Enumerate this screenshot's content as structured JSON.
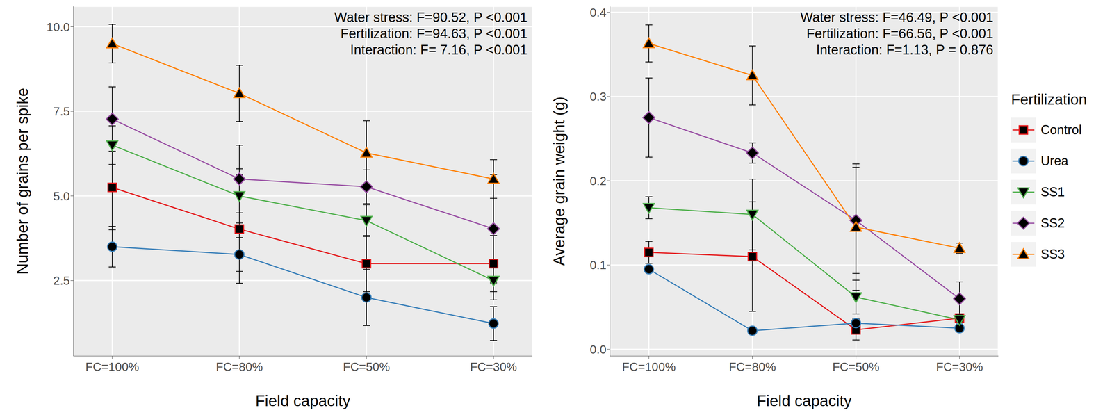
{
  "chart_data": [
    {
      "type": "line",
      "x_label": "Field capacity",
      "y_label": "Number of grains per spike",
      "annotations": [
        "Water stress: F=90.52, P <0.001",
        "Fertilization: F=94.63, P <0.001",
        "Interaction: F= 7.16, P <0.001"
      ],
      "categories": [
        "FC=100%",
        "FC=80%",
        "FC=50%",
        "FC=30%"
      ],
      "ylim": [
        0.27,
        10.6
      ],
      "yticks": [
        2.5,
        {
          "value": 5,
          "label": "5.0"
        },
        7.5,
        {
          "value": 10,
          "label": "10.0"
        }
      ],
      "grid": true,
      "series": [
        {
          "name": "Control",
          "color": "#E41A1C",
          "marker": "square",
          "values": [
            5.25,
            4.02,
            3.0,
            3.0
          ],
          "errors": [
            1.25,
            1.6,
            0.83,
            0.83
          ]
        },
        {
          "name": "Urea",
          "color": "#377EB8",
          "marker": "circle",
          "values": [
            3.5,
            3.27,
            2.0,
            1.23
          ],
          "errors": [
            0.6,
            0.5,
            0.83,
            0.5
          ]
        },
        {
          "name": "SS1",
          "color": "#4DAF4A",
          "marker": "triangle-down",
          "values": [
            6.5,
            5.0,
            4.27,
            2.5
          ],
          "errors": [
            0.57,
            0.8,
            0.47,
            0.57
          ]
        },
        {
          "name": "SS2",
          "color": "#984EA3",
          "marker": "diamond",
          "values": [
            7.27,
            5.5,
            5.27,
            4.03
          ],
          "errors": [
            0.95,
            1.0,
            0.5,
            1.6
          ]
        },
        {
          "name": "SS3",
          "color": "#FF7F00",
          "marker": "triangle-up",
          "values": [
            9.5,
            8.03,
            6.27,
            5.5
          ],
          "errors": [
            0.57,
            0.83,
            0.95,
            0.57
          ]
        }
      ]
    },
    {
      "type": "line",
      "x_label": "Field capacity",
      "y_label": "Average grain weight (g)",
      "annotations": [
        "Water stress: F=46.49, P <0.001",
        "Fertilization: F=66.56, P <0.001",
        "Interaction: F=1.13, P = 0.876"
      ],
      "categories": [
        "FC=100%",
        "FC=80%",
        "FC=50%",
        "FC=30%"
      ],
      "ylim": [
        -0.008,
        0.407
      ],
      "yticks": [
        {
          "value": 0,
          "label": "0.0"
        },
        0.1,
        0.2,
        0.3,
        0.4
      ],
      "grid": true,
      "legend": "right",
      "legend_title": "Fertilization",
      "series": [
        {
          "name": "Control",
          "color": "#E41A1C",
          "marker": "square",
          "values": [
            0.115,
            0.11,
            0.023,
            0.037
          ],
          "errors": [
            0.013,
            0.065,
            0.012,
            0.005
          ]
        },
        {
          "name": "Urea",
          "color": "#377EB8",
          "marker": "circle",
          "values": [
            0.095,
            0.022,
            0.031,
            0.025
          ],
          "errors": [
            0.002,
            0.002,
            0.005,
            0.003
          ]
        },
        {
          "name": "SS1",
          "color": "#4DAF4A",
          "marker": "triangle-down",
          "values": [
            0.168,
            0.16,
            0.062,
            0.035
          ],
          "errors": [
            0.013,
            0.042,
            0.02,
            0.005
          ]
        },
        {
          "name": "SS2",
          "color": "#984EA3",
          "marker": "diamond",
          "values": [
            0.275,
            0.233,
            0.153,
            0.06
          ],
          "errors": [
            0.047,
            0.012,
            0.063,
            0.02
          ]
        },
        {
          "name": "SS3",
          "color": "#FF7F00",
          "marker": "triangle-up",
          "values": [
            0.363,
            0.325,
            0.145,
            0.12
          ],
          "errors": [
            0.022,
            0.035,
            0.075,
            0.006
          ]
        }
      ]
    }
  ]
}
